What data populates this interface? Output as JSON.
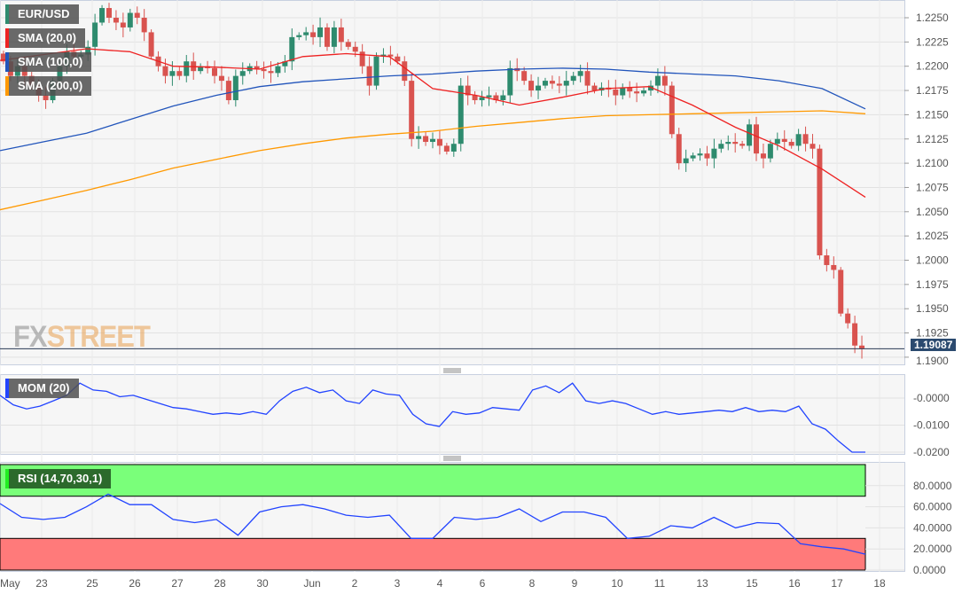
{
  "symbol": "EUR/USD",
  "indicators": {
    "sma20": "SMA (20,0)",
    "sma100": "SMA (100,0)",
    "sma200": "SMA (200,0)",
    "mom": "MOM (20)",
    "rsi": "RSI (14,70,30,1)"
  },
  "colors": {
    "up": "#2e8b6e",
    "down": "#d9534f",
    "sma20": "#ee2222",
    "sma100": "#2255bb",
    "sma200": "#ff9900",
    "mom": "#2244ff",
    "rsi": "#2244ff",
    "overbought": "#7aff7a",
    "oversold": "#ff7a7a"
  },
  "logo": {
    "part1": "FX",
    "part2": "STREET"
  },
  "current_price": "1.19087",
  "price_axis": [
    "1.2250",
    "1.2225",
    "1.2200",
    "1.2175",
    "1.2150",
    "1.2125",
    "1.2100",
    "1.2075",
    "1.2050",
    "1.2025",
    "1.2000",
    "1.1975",
    "1.1950",
    "1.1925",
    "1.1900"
  ],
  "mom_axis": [
    "-0.0000",
    "-0.0100",
    "-0.0200"
  ],
  "rsi_axis": [
    "80.0000",
    "60.0000",
    "40.0000",
    "20.0000",
    "0.0000"
  ],
  "date_axis": [
    "May",
    "23",
    "25",
    "26",
    "27",
    "28",
    "30",
    "Jun",
    "2",
    "3",
    "4",
    "6",
    "8",
    "9",
    "10",
    "11",
    "13",
    "15",
    "16",
    "17",
    "18"
  ],
  "chart_data": {
    "type": "candlestick",
    "price_range": [
      1.1895,
      1.2268
    ],
    "closes": [
      1.2205,
      1.219,
      1.22,
      1.219,
      1.218,
      1.217,
      1.2165,
      1.2185,
      1.22,
      1.2215,
      1.221,
      1.2212,
      1.222,
      1.2245,
      1.226,
      1.225,
      1.2245,
      1.224,
      1.2255,
      1.225,
      1.2235,
      1.221,
      1.22,
      1.219,
      1.2195,
      1.219,
      1.2205,
      1.2195,
      1.22,
      1.2198,
      1.219,
      1.2185,
      1.2165,
      1.219,
      1.2195,
      1.22,
      1.2197,
      1.2195,
      1.2193,
      1.22,
      1.2205,
      1.223,
      1.2232,
      1.2235,
      1.223,
      1.224,
      1.222,
      1.224,
      1.2225,
      1.222,
      1.2215,
      1.22,
      1.218,
      1.221,
      1.2212,
      1.221,
      1.2205,
      1.2185,
      1.2125,
      1.2128,
      1.2122,
      1.2125,
      1.2118,
      1.2112,
      1.212,
      1.218,
      1.217,
      1.2165,
      1.2168,
      1.217,
      1.2165,
      1.217,
      1.2198,
      1.2195,
      1.2185,
      1.2175,
      1.218,
      1.2185,
      1.2182,
      1.218,
      1.2185,
      1.219,
      1.2195,
      1.218,
      1.2175,
      1.2178,
      1.2176,
      1.217,
      1.2178,
      1.2174,
      1.2172,
      1.2175,
      1.218,
      1.219,
      1.218,
      1.213,
      1.21,
      1.2105,
      1.2108,
      1.211,
      1.2105,
      1.2115,
      1.212,
      1.2122,
      1.212,
      1.2118,
      1.214,
      1.211,
      1.2105,
      1.212,
      1.2125,
      1.2122,
      1.2118,
      1.213,
      1.212,
      1.2115,
      1.2005,
      1.1995,
      1.199,
      1.1945,
      1.1935,
      1.1912,
      1.19087
    ],
    "sma20": [
      1.2206,
      1.2212,
      1.2218,
      1.2215,
      1.22,
      1.2199,
      1.2197,
      1.221,
      1.2213,
      1.221,
      1.2177,
      1.217,
      1.216,
      1.2168,
      1.2177,
      1.2179,
      1.216,
      1.2137,
      1.2118,
      1.2094,
      1.2065
    ],
    "sma100": [
      1.2113,
      1.2122,
      1.2131,
      1.2145,
      1.2159,
      1.217,
      1.2179,
      1.2184,
      1.2187,
      1.219,
      1.2192,
      1.2195,
      1.2197,
      1.2198,
      1.2197,
      1.2194,
      1.2192,
      1.219,
      1.2185,
      1.2177,
      1.2156
    ],
    "sma200": [
      1.2052,
      1.2062,
      1.2072,
      1.2083,
      1.2095,
      1.2104,
      1.2113,
      1.212,
      1.2126,
      1.213,
      1.2133,
      1.2138,
      1.2142,
      1.2146,
      1.2149,
      1.215,
      1.2151,
      1.2152,
      1.2153,
      1.2154,
      1.2151
    ],
    "mom": [
      0.001,
      -0.0025,
      -0.004,
      -0.003,
      -0.001,
      0.001,
      0.0055,
      0.003,
      0.0025,
      0.0005,
      0.001,
      -0.0005,
      -0.002,
      -0.0035,
      -0.004,
      -0.005,
      -0.006,
      -0.0055,
      -0.006,
      -0.005,
      -0.006,
      -0.001,
      0.0025,
      0.004,
      0.002,
      0.003,
      -0.001,
      -0.002,
      0.003,
      0.0015,
      0.001,
      -0.006,
      -0.0095,
      -0.0105,
      -0.005,
      -0.006,
      -0.0055,
      -0.0035,
      -0.004,
      -0.0045,
      0.003,
      0.0045,
      0.002,
      0.0055,
      -0.001,
      -0.002,
      -0.001,
      -0.002,
      -0.004,
      -0.006,
      -0.005,
      -0.006,
      -0.0055,
      -0.005,
      -0.0045,
      -0.005,
      -0.0035,
      -0.005,
      -0.0045,
      -0.005,
      -0.003,
      -0.0095,
      -0.0115,
      -0.016,
      -0.02,
      -0.02
    ],
    "rsi": [
      63,
      50,
      48,
      50,
      60,
      72,
      62,
      62,
      48,
      45,
      48,
      33,
      55,
      60,
      62,
      58,
      52,
      50,
      52,
      30,
      30,
      50,
      48,
      50,
      58,
      46,
      55,
      55,
      50,
      30,
      32,
      42,
      40,
      50,
      40,
      45,
      44,
      25,
      22,
      20,
      15
    ]
  }
}
